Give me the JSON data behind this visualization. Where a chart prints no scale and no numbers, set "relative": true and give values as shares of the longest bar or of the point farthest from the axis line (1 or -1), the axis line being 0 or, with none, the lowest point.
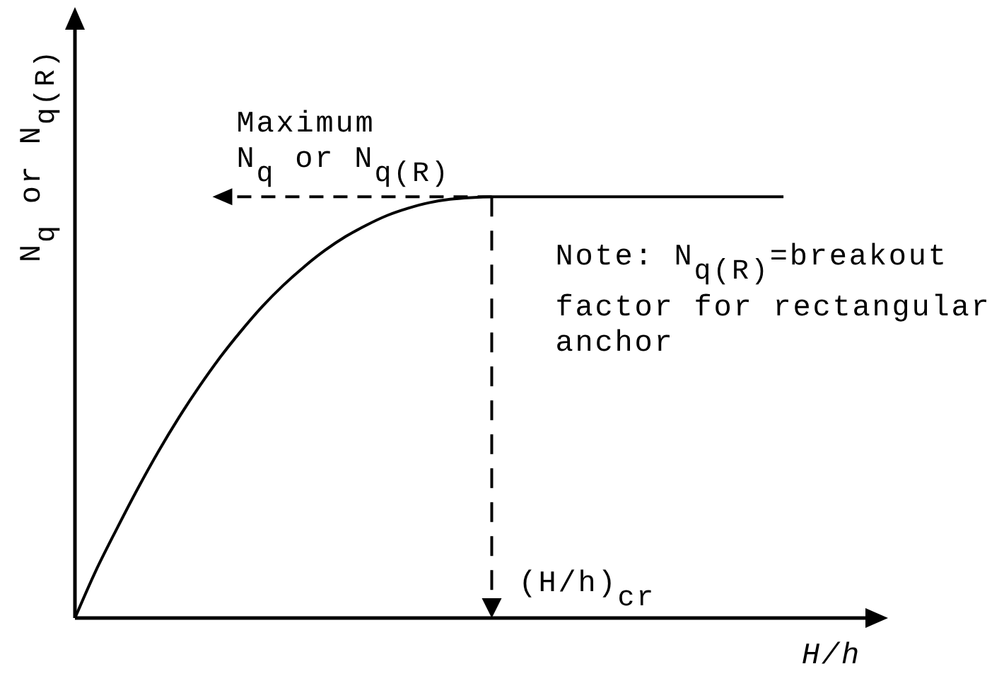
{
  "chart_data": {
    "type": "line",
    "xlabel": "H/h",
    "ylabel": "N$_{q}$ or N$_{q(R)}$",
    "annotations": [
      "Maximum\nN$_{q}$ or N$_{q(R)}$",
      "(H/h)$_{cr}$",
      "Note: N$_{q(R)}$=breakout\nfactor for rectangular\nanchor"
    ],
    "categories": [
      null,
      null,
      null,
      null,
      null,
      null,
      null,
      null,
      null,
      null,
      null,
      null,
      null,
      null,
      null,
      null,
      null,
      null,
      null,
      null,
      null,
      null,
      null,
      null,
      null,
      null,
      null,
      null,
      null,
      null,
      null,
      null,
      null,
      null,
      null,
      null,
      null,
      null,
      null
    ],
    "values": [
      0,
      0.112,
      0.211,
      0.306,
      0.395,
      0.477,
      0.552,
      0.621,
      0.683,
      0.74,
      0.79,
      0.834,
      0.873,
      0.906,
      0.933,
      0.956,
      0.973,
      0.986,
      0.994,
      0.998,
      1,
      1,
      1,
      1,
      1,
      1,
      1,
      1,
      1,
      1,
      1,
      1,
      1,
      1,
      1,
      null,
      null,
      null,
      null
    ],
    "color": "#000000",
    "relative": true,
    "line_style": "solid"
  }
}
